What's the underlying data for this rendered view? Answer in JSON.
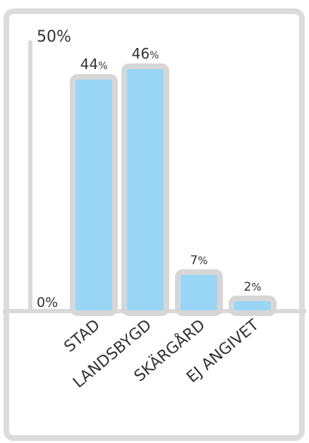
{
  "chart_data": {
    "type": "bar",
    "title": "",
    "xlabel": "",
    "ylabel": "",
    "ylim": [
      0,
      50
    ],
    "y_tick_labels": [
      "0%",
      "50%"
    ],
    "categories": [
      "STAD",
      "LANDSBYGD",
      "SKÄRGÅRD",
      "EJ ANGIVET"
    ],
    "values": [
      44,
      46,
      7,
      2
    ],
    "value_suffix": "%",
    "grid": false,
    "legend": "none",
    "colors": {
      "bar_fill": "#99d6f5",
      "bar_outline": "#d6d6d6",
      "axis": "#d9d9d9",
      "frame": "#dcdcdc",
      "text": "#333333"
    }
  }
}
